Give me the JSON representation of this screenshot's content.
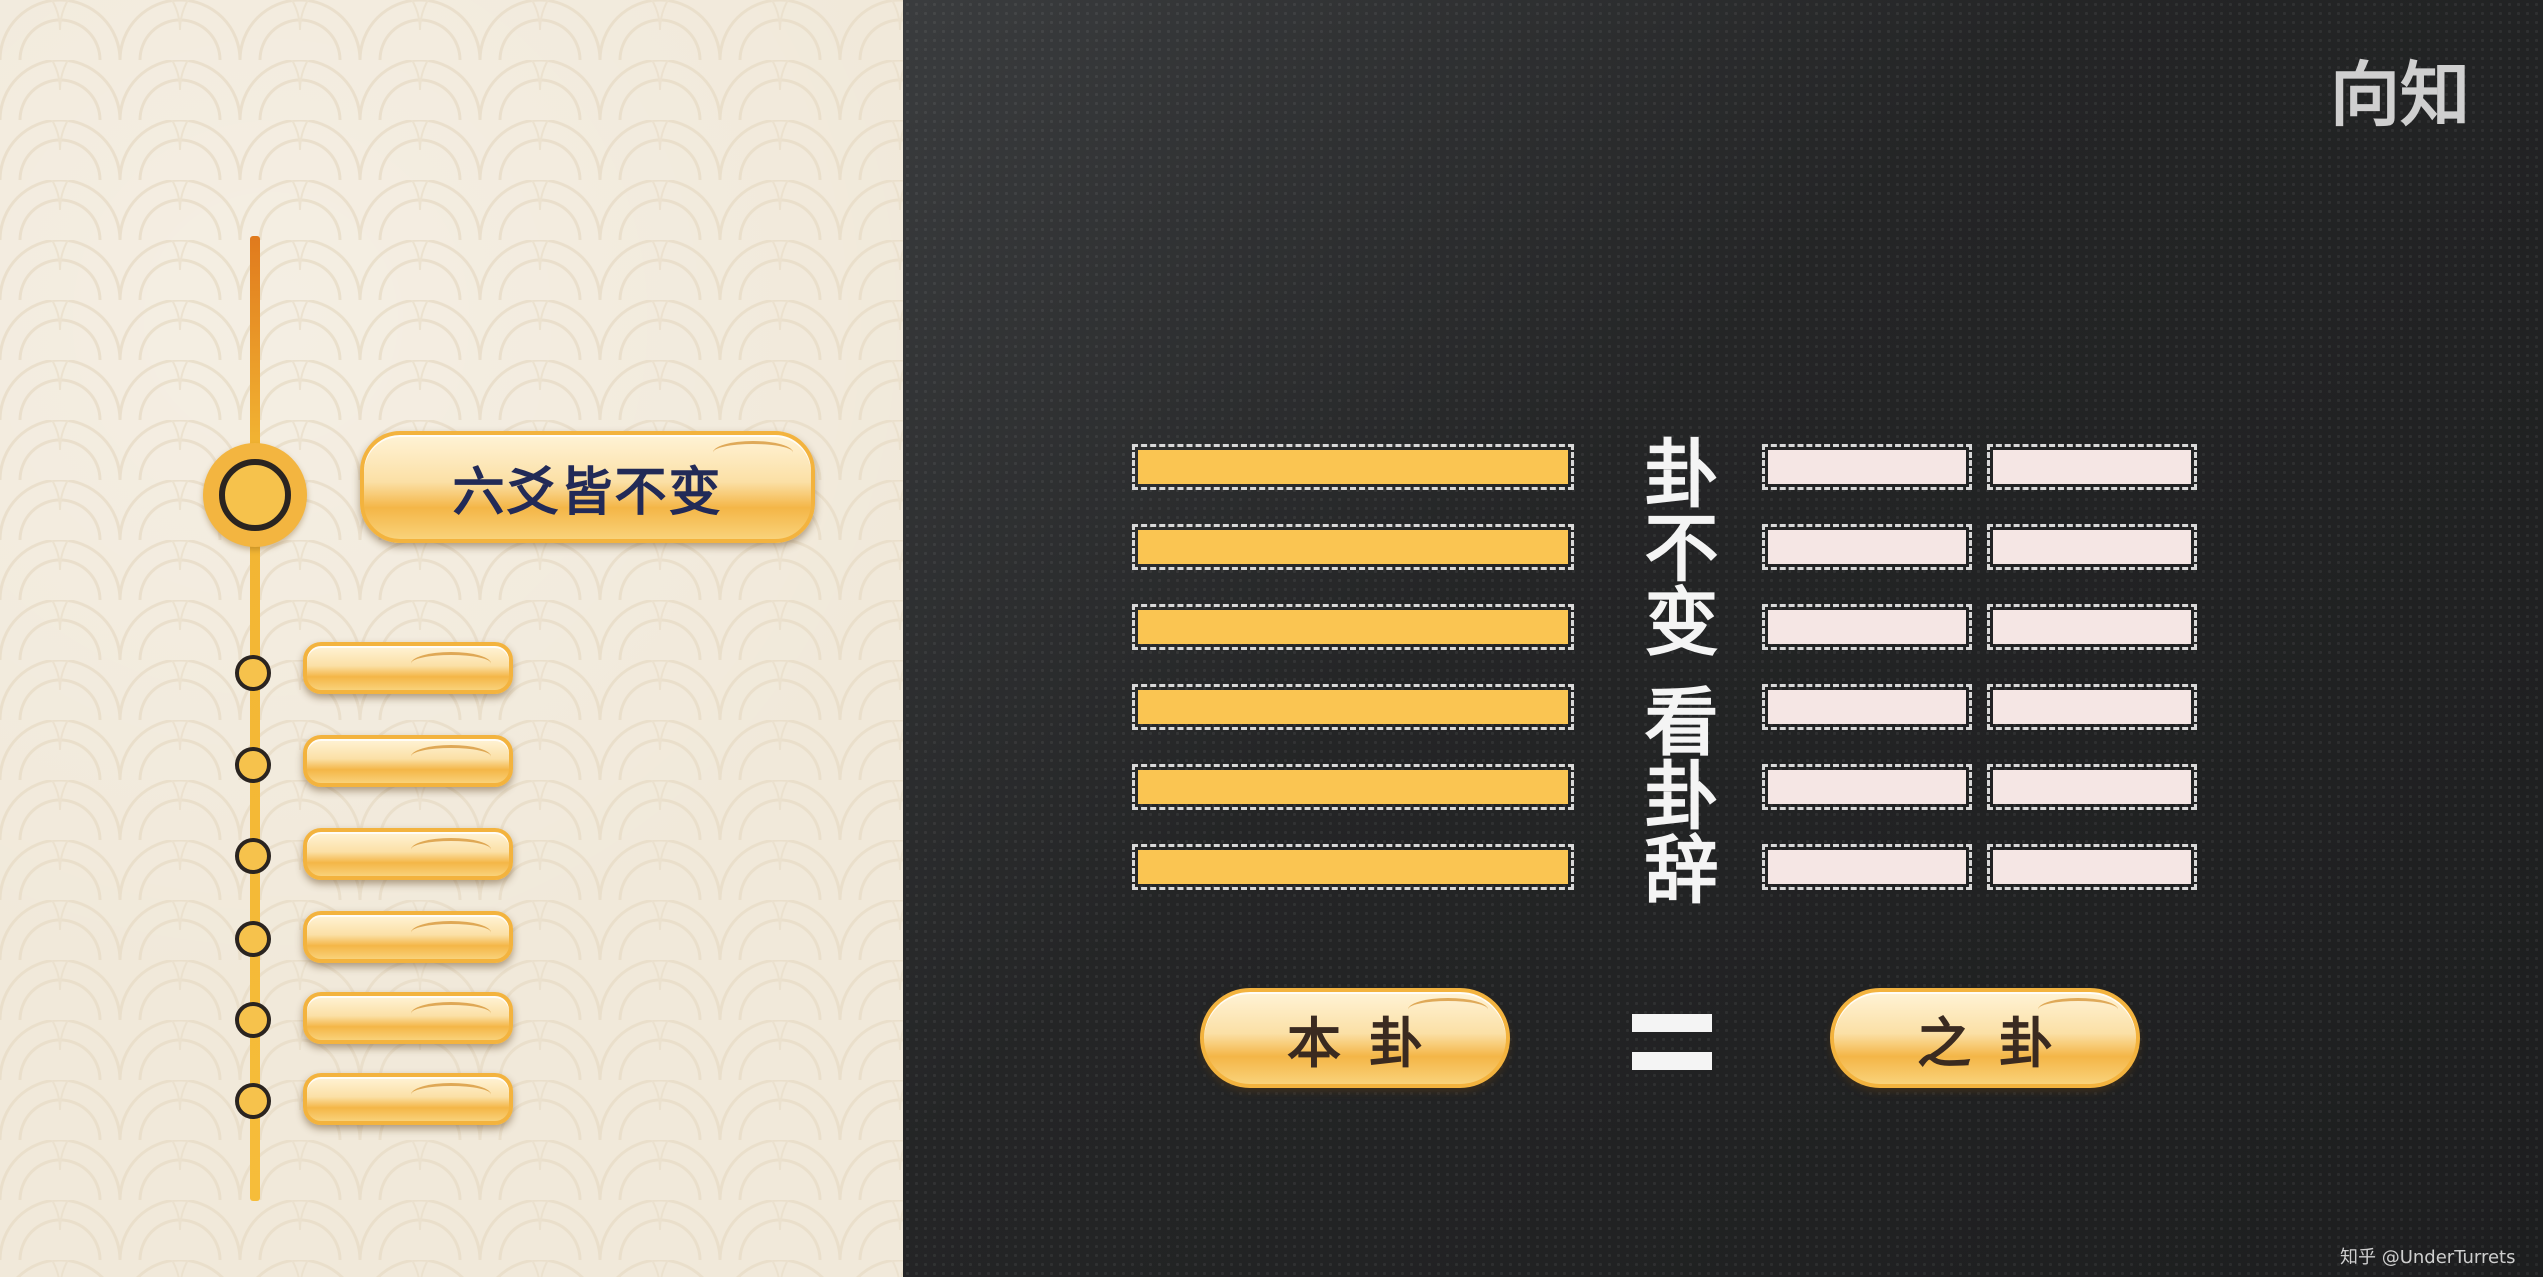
{
  "left_panel": {
    "main_title": "六爻皆不变",
    "timeline_step_count": 6
  },
  "right_panel": {
    "watermark": "向知",
    "vertical_caption": "卦不变 看卦辞",
    "original_hexagram_label": "本卦",
    "changed_hexagram_label": "之卦",
    "original_hexagram_lines": [
      "yang",
      "yang",
      "yang",
      "yang",
      "yang",
      "yang"
    ],
    "changed_hexagram_lines": [
      "yin",
      "yin",
      "yin",
      "yin",
      "yin",
      "yin"
    ],
    "colors": {
      "yang_line": "#fac552",
      "yin_line": "#f5e6e4",
      "accent_gold": "#f3b33e",
      "title_text": "#222a57"
    }
  },
  "credit": "知乎 @UnderTurrets"
}
